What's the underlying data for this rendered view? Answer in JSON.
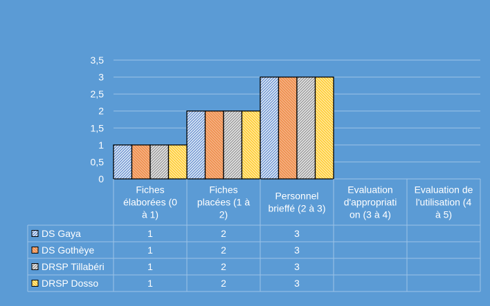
{
  "chart_data": {
    "type": "bar",
    "categories": [
      [
        "Fiches",
        "élaborées (0",
        "à 1)"
      ],
      [
        "Fiches",
        "placées (1 à",
        "2)"
      ],
      [
        "Personnel",
        "brieffé (2 à 3)"
      ],
      [
        "Evaluation",
        "d'appropriati",
        "on (3 à 4)"
      ],
      [
        "Evaluation de",
        "l'utilisation (4",
        "à 5)"
      ]
    ],
    "ylim": [
      0,
      3.5
    ],
    "y_ticks": [
      "0",
      "0,5",
      "1",
      "1,5",
      "2",
      "2,5",
      "3",
      "3,5"
    ],
    "grid": true,
    "legend": "data-table",
    "series": [
      {
        "name": "DS Gaya",
        "color": "#dbe8f5",
        "pattern_color": "#4472c4",
        "values": [
          1,
          2,
          3,
          null,
          null
        ],
        "labels": [
          "1",
          "2",
          "3",
          "",
          ""
        ]
      },
      {
        "name": "DS Gothèye",
        "color": "#f4b183",
        "pattern_color": "#ed7d31",
        "values": [
          1,
          2,
          3,
          null,
          null
        ],
        "labels": [
          "1",
          "2",
          "3",
          "",
          ""
        ]
      },
      {
        "name": "DRSP Tillabéri",
        "color": "#e2e2e2",
        "pattern_color": "#7f7f7f",
        "values": [
          1,
          2,
          3,
          null,
          null
        ],
        "labels": [
          "1",
          "2",
          "3",
          "",
          ""
        ]
      },
      {
        "name": "DRSP Dosso",
        "color": "#ffe699",
        "pattern_color": "#ffc000",
        "values": [
          1,
          2,
          3,
          null,
          null
        ],
        "labels": [
          "1",
          "2",
          "3",
          "",
          ""
        ]
      }
    ]
  }
}
